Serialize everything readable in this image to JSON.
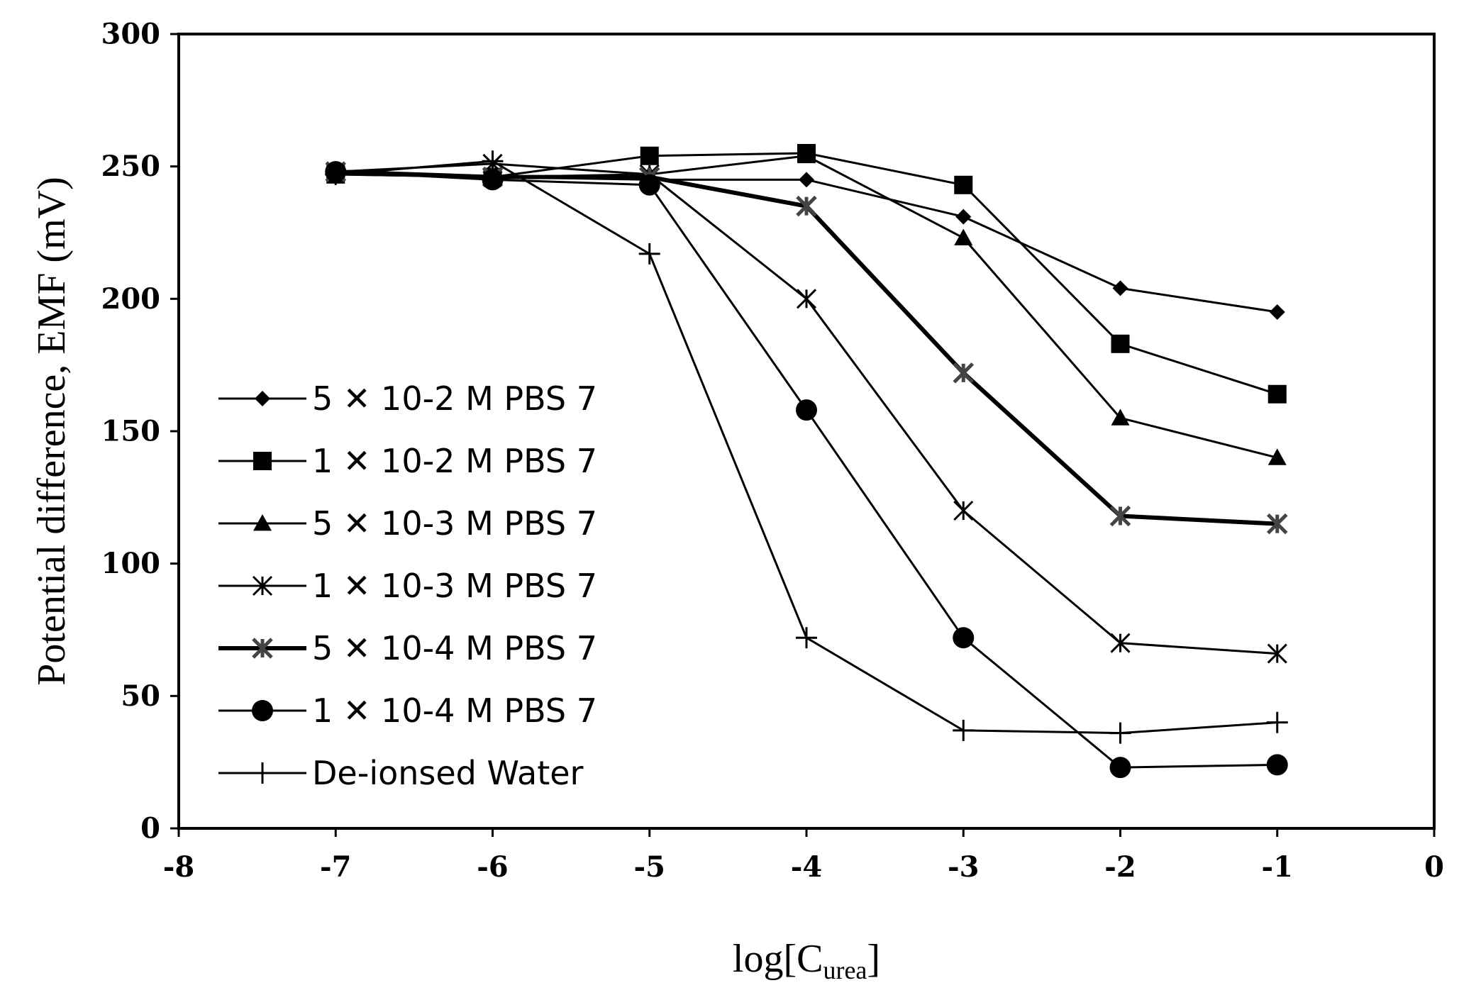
{
  "chart_data": {
    "type": "line",
    "title": "",
    "xlabel": "log[C",
    "xlabel_subscript": "urea",
    "xlabel_suffix": "]",
    "ylabel": "Potential difference, EMF (mV)",
    "xlim": [
      -8,
      0
    ],
    "ylim": [
      0,
      300
    ],
    "xticks": [
      -8,
      -7,
      -6,
      -5,
      -4,
      -3,
      -2,
      -1,
      0
    ],
    "yticks": [
      0,
      50,
      100,
      150,
      200,
      250,
      300
    ],
    "grid": false,
    "legend_position": "left",
    "x": [
      -7,
      -6,
      -5,
      -4,
      -3,
      -2,
      -1
    ],
    "series": [
      {
        "name": "5 ✕ 10-2 M PBS 7",
        "marker": "diamond",
        "line_width": 3,
        "values": [
          248,
          246,
          245,
          245,
          231,
          204,
          195
        ]
      },
      {
        "name": "1 ✕ 10-2 M PBS 7",
        "marker": "square",
        "line_width": 3,
        "values": [
          247,
          246,
          254,
          255,
          243,
          183,
          164
        ]
      },
      {
        "name": "5 ✕ 10-3 M PBS 7",
        "marker": "triangle",
        "line_width": 3,
        "values": [
          247,
          246,
          247,
          254,
          223,
          155,
          140
        ]
      },
      {
        "name": "1 ✕ 10-3 M PBS 7",
        "marker": "xstar",
        "line_width": 3,
        "values": [
          248,
          251,
          247,
          200,
          120,
          70,
          66
        ]
      },
      {
        "name": "5 ✕ 10-4 M PBS 7",
        "marker": "xstar-bold",
        "line_width": 6,
        "values": [
          248,
          246,
          246,
          235,
          172,
          118,
          115
        ]
      },
      {
        "name": "1 ✕ 10-4 M PBS 7",
        "marker": "circle",
        "line_width": 3,
        "values": [
          248,
          245,
          243,
          158,
          72,
          23,
          24
        ]
      },
      {
        "name": "De-ionsed Water",
        "marker": "plus",
        "line_width": 3,
        "values": [
          247,
          252,
          217,
          72,
          37,
          36,
          40
        ]
      }
    ]
  }
}
